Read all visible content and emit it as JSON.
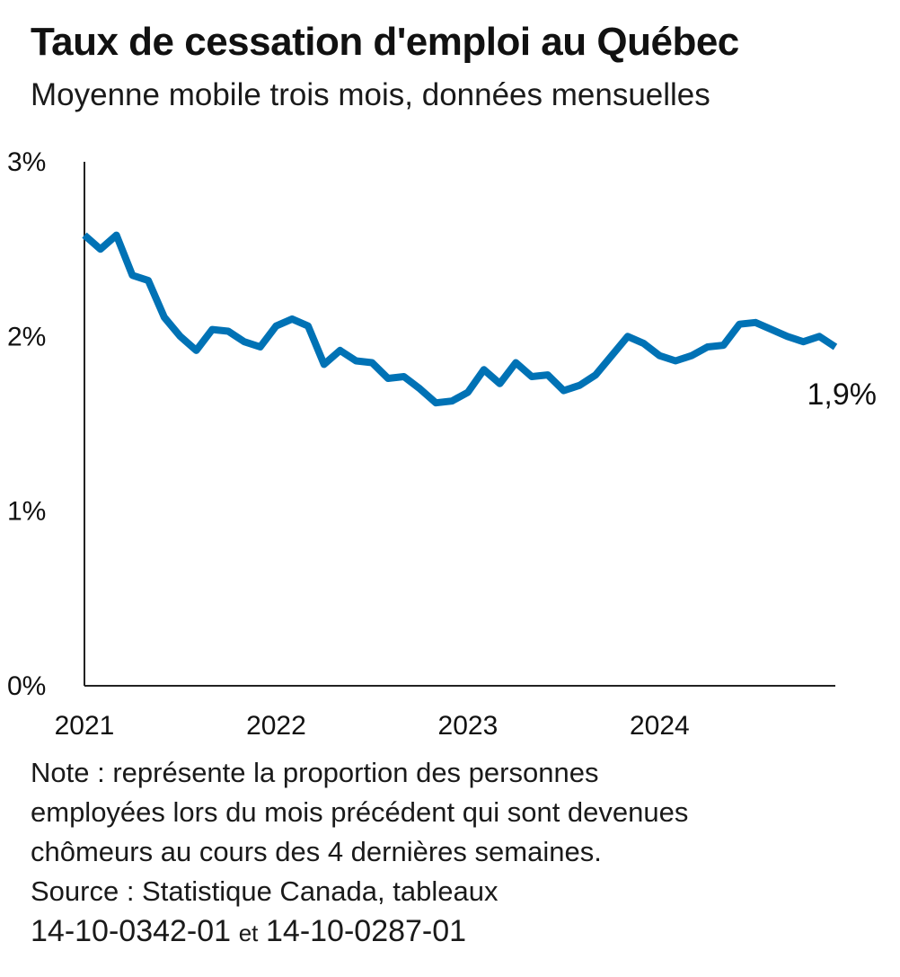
{
  "title": "Taux de cessation d'emploi au Québec",
  "subtitle": "Moyenne mobile trois mois, données mensuelles",
  "chart_data": {
    "type": "line",
    "title": "Taux de cessation d'emploi au Québec",
    "subtitle": "Moyenne mobile trois mois, données mensuelles",
    "xlabel": "",
    "ylabel": "",
    "ylim": [
      0,
      3
    ],
    "y_ticks": [
      0,
      1,
      2,
      3
    ],
    "y_tick_labels": [
      "0%",
      "1%",
      "2%",
      "3%"
    ],
    "x_range": [
      "2021-01",
      "2024-12"
    ],
    "x_ticks": [
      "2021-01",
      "2022-01",
      "2023-01",
      "2024-01"
    ],
    "x_tick_labels": [
      "2021",
      "2022",
      "2023",
      "2024"
    ],
    "grid": false,
    "line_color": "#0072b5",
    "series": [
      {
        "x": [
          "2021-01",
          "2021-02",
          "2021-03",
          "2021-04",
          "2021-05",
          "2021-06",
          "2021-07",
          "2021-08",
          "2021-09",
          "2021-10",
          "2021-11",
          "2021-12",
          "2022-01",
          "2022-02",
          "2022-03",
          "2022-04",
          "2022-05",
          "2022-06",
          "2022-07",
          "2022-08",
          "2022-09",
          "2022-10",
          "2022-11",
          "2022-12",
          "2023-01",
          "2023-02",
          "2023-03",
          "2023-04",
          "2023-05",
          "2023-06",
          "2023-07",
          "2023-08",
          "2023-09",
          "2023-10",
          "2023-11",
          "2023-12",
          "2024-01",
          "2024-02",
          "2024-03",
          "2024-04",
          "2024-05",
          "2024-06",
          "2024-07",
          "2024-08",
          "2024-09",
          "2024-10",
          "2024-11",
          "2024-12"
        ],
        "values": [
          2.58,
          2.5,
          2.58,
          2.35,
          2.32,
          2.11,
          2.0,
          1.92,
          2.04,
          2.03,
          1.97,
          1.94,
          2.06,
          2.1,
          2.06,
          1.84,
          1.92,
          1.86,
          1.85,
          1.76,
          1.77,
          1.7,
          1.62,
          1.63,
          1.68,
          1.81,
          1.73,
          1.85,
          1.77,
          1.78,
          1.69,
          1.72,
          1.78,
          1.89,
          2.0,
          1.96,
          1.89,
          1.86,
          1.89,
          1.94,
          1.95,
          2.07,
          2.08,
          2.04,
          2.0,
          1.97,
          2.0,
          1.94
        ]
      }
    ],
    "annotations": [
      {
        "text": "1,9%",
        "x": "2024-12",
        "y": 1.94
      }
    ]
  },
  "note": {
    "line1": "Note : représente la proportion des personnes",
    "line2": "employées lors du mois précédent qui sont devenues",
    "line3": "chômeurs au cours des 4 dernières semaines."
  },
  "source": {
    "line1": "Source : Statistique Canada, tableaux",
    "table1": "14-10-0342-01",
    "et": "et",
    "table2": "14-10-0287-01"
  }
}
